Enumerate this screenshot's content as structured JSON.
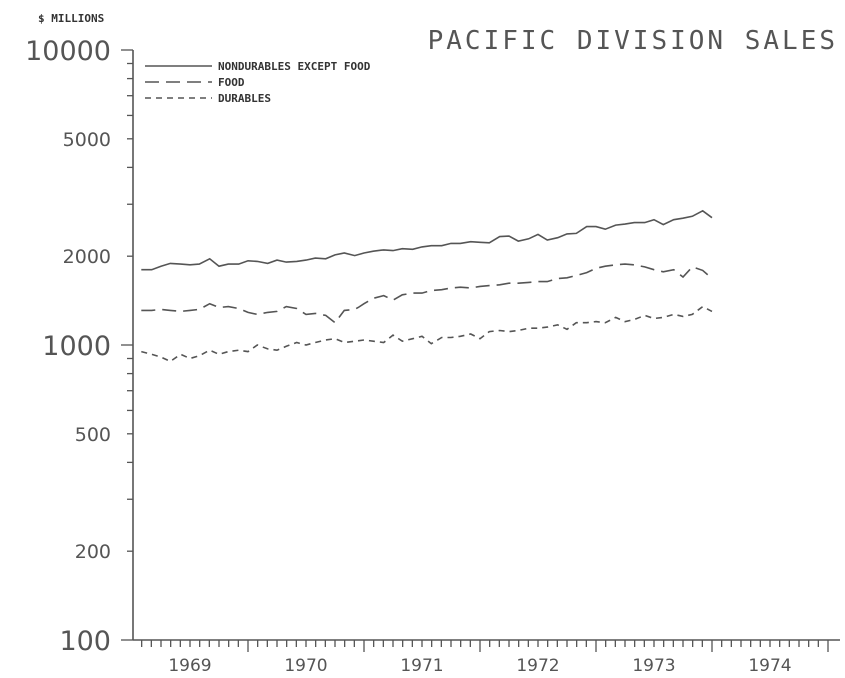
{
  "chart_data": {
    "type": "line",
    "title": "PACIFIC DIVISION SALES",
    "ylabel": "$ MILLIONS",
    "xlabel": "",
    "yscale": "log",
    "ylim": [
      100,
      10000
    ],
    "xlim": [
      1968.5,
      1974.5
    ],
    "y_ticks_major": [
      100,
      1000,
      10000
    ],
    "y_ticks_minor": [
      200,
      500,
      2000,
      5000
    ],
    "x_tick_labels": [
      "1969",
      "1970",
      "1971",
      "1972",
      "1973",
      "1974"
    ],
    "grid": false,
    "legend_position": "top-left",
    "series": [
      {
        "name": "NONDURABLES EXCEPT FOOD",
        "style": "solid",
        "x": [
          1968.58,
          1968.67,
          1968.75,
          1968.83,
          1968.92,
          1969.0,
          1969.08,
          1969.17,
          1969.25,
          1969.33,
          1969.42,
          1969.5,
          1969.58,
          1969.67,
          1969.75,
          1969.83,
          1969.92,
          1970.0,
          1970.08,
          1970.17,
          1970.25,
          1970.33,
          1970.42,
          1970.5,
          1970.58,
          1970.67,
          1970.75,
          1970.83,
          1970.92,
          1971.0,
          1971.08,
          1971.17,
          1971.25,
          1971.33,
          1971.42,
          1971.5,
          1971.58,
          1971.67,
          1971.75,
          1971.83,
          1971.92,
          1972.0,
          1972.08,
          1972.17,
          1972.25,
          1972.33,
          1972.42,
          1972.5,
          1972.58,
          1972.67,
          1972.75,
          1972.83,
          1972.92,
          1973.0,
          1973.08,
          1973.17,
          1973.25,
          1973.33,
          1973.42,
          1973.5
        ],
        "values": [
          1800,
          1800,
          1850,
          1890,
          1880,
          1870,
          1880,
          1960,
          1850,
          1880,
          1880,
          1930,
          1920,
          1890,
          1940,
          1910,
          1920,
          1940,
          1970,
          1960,
          2020,
          2050,
          2010,
          2050,
          2080,
          2100,
          2090,
          2120,
          2110,
          2150,
          2170,
          2170,
          2210,
          2210,
          2240,
          2230,
          2220,
          2330,
          2340,
          2250,
          2290,
          2370,
          2270,
          2310,
          2380,
          2390,
          2520,
          2520,
          2470,
          2550,
          2570,
          2600,
          2600,
          2660,
          2560,
          2660,
          2690,
          2730,
          2850,
          2700
        ]
      },
      {
        "name": "FOOD",
        "style": "long-dash",
        "x": [
          1968.58,
          1968.67,
          1968.75,
          1968.83,
          1968.92,
          1969.0,
          1969.08,
          1969.17,
          1969.25,
          1969.33,
          1969.42,
          1969.5,
          1969.58,
          1969.67,
          1969.75,
          1969.83,
          1969.92,
          1970.0,
          1970.08,
          1970.17,
          1970.25,
          1970.33,
          1970.42,
          1970.45,
          1970.5,
          1970.58,
          1970.67,
          1970.75,
          1970.83,
          1970.92,
          1971.0,
          1971.08,
          1971.17,
          1971.25,
          1971.33,
          1971.42,
          1971.5,
          1971.58,
          1971.67,
          1971.75,
          1971.83,
          1971.92,
          1972.0,
          1972.08,
          1972.17,
          1972.25,
          1972.33,
          1972.42,
          1972.5,
          1972.58,
          1972.67,
          1972.75,
          1972.83,
          1972.92,
          1973.0,
          1973.08,
          1973.17,
          1973.25,
          1973.33,
          1973.42,
          1973.5
        ],
        "values": [
          1310,
          1310,
          1320,
          1310,
          1300,
          1310,
          1320,
          1380,
          1340,
          1350,
          1330,
          1290,
          1270,
          1290,
          1300,
          1350,
          1330,
          1270,
          1280,
          1260,
          1190,
          1310,
          1320,
          1340,
          1380,
          1440,
          1470,
          1420,
          1480,
          1500,
          1500,
          1530,
          1540,
          1560,
          1570,
          1560,
          1580,
          1590,
          1600,
          1620,
          1620,
          1630,
          1640,
          1640,
          1680,
          1690,
          1720,
          1760,
          1820,
          1850,
          1870,
          1880,
          1870,
          1840,
          1800,
          1770,
          1800,
          1700,
          1840,
          1790,
          1680
        ]
      },
      {
        "name": "DURABLES",
        "style": "short-dash",
        "x": [
          1968.58,
          1968.67,
          1968.75,
          1968.83,
          1968.92,
          1969.0,
          1969.08,
          1969.17,
          1969.25,
          1969.33,
          1969.42,
          1969.5,
          1969.58,
          1969.67,
          1969.75,
          1969.83,
          1969.92,
          1970.0,
          1970.08,
          1970.17,
          1970.25,
          1970.33,
          1970.42,
          1970.5,
          1970.58,
          1970.67,
          1970.75,
          1970.83,
          1970.92,
          1971.0,
          1971.08,
          1971.17,
          1971.25,
          1971.33,
          1971.42,
          1971.5,
          1971.58,
          1971.67,
          1971.75,
          1971.83,
          1971.92,
          1972.0,
          1972.08,
          1972.17,
          1972.25,
          1972.33,
          1972.42,
          1972.5,
          1972.58,
          1972.67,
          1972.75,
          1972.83,
          1972.92,
          1973.0,
          1973.08,
          1973.17,
          1973.25,
          1973.33,
          1973.42,
          1973.5
        ],
        "values": [
          950,
          930,
          910,
          880,
          930,
          900,
          920,
          960,
          930,
          950,
          960,
          950,
          1000,
          970,
          960,
          990,
          1020,
          1000,
          1020,
          1040,
          1050,
          1020,
          1030,
          1040,
          1030,
          1020,
          1080,
          1030,
          1050,
          1070,
          1010,
          1060,
          1060,
          1070,
          1090,
          1050,
          1110,
          1120,
          1110,
          1120,
          1140,
          1140,
          1150,
          1170,
          1130,
          1190,
          1190,
          1200,
          1190,
          1240,
          1200,
          1220,
          1260,
          1230,
          1240,
          1270,
          1250,
          1270,
          1350,
          1300
        ]
      }
    ]
  }
}
